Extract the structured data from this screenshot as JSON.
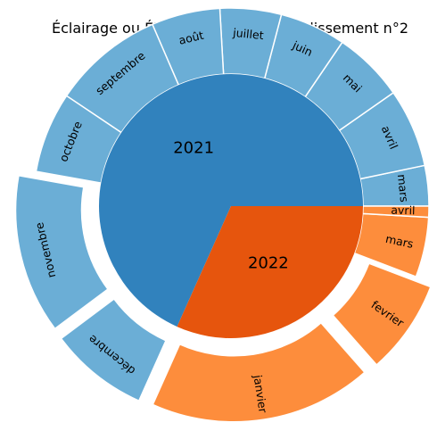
{
  "chart_data": {
    "type": "sunburst",
    "title": "Éclairage ou Électricité dans l'arrondissement n°2",
    "inner_ring": [
      {
        "name": "2021",
        "value": 68.3,
        "color": "#3182bd"
      },
      {
        "name": "2022",
        "value": 31.7,
        "color": "#e6550d"
      }
    ],
    "outer_ring": [
      {
        "parent": "2021",
        "label": "mars",
        "value": 3.3,
        "color": "#6baed6"
      },
      {
        "parent": "2021",
        "label": "avril",
        "value": 6.4,
        "color": "#6baed6"
      },
      {
        "parent": "2021",
        "label": "mai",
        "value": 5.8,
        "color": "#6baed6"
      },
      {
        "parent": "2021",
        "label": "juin",
        "value": 5.4,
        "color": "#6baed6"
      },
      {
        "parent": "2021",
        "label": "juillet",
        "value": 5.0,
        "color": "#6baed6"
      },
      {
        "parent": "2021",
        "label": "août",
        "value": 5.6,
        "color": "#6baed6"
      },
      {
        "parent": "2021",
        "label": "septembre",
        "value": 9.1,
        "color": "#6baed6"
      },
      {
        "parent": "2021",
        "label": "octobre",
        "value": 6.6,
        "color": "#6baed6"
      },
      {
        "parent": "2021",
        "label": "novembre",
        "value": 13.0,
        "color": "#6baed6",
        "exploded": true
      },
      {
        "parent": "2021",
        "label": "décembre",
        "value": 8.1,
        "color": "#6baed6",
        "exploded": true
      },
      {
        "parent": "2022",
        "label": "janvier",
        "value": 18.2,
        "color": "#fd8d3c",
        "exploded": true
      },
      {
        "parent": "2022",
        "label": "fevrier",
        "value": 7.7,
        "color": "#fd8d3c",
        "exploded": true
      },
      {
        "parent": "2022",
        "label": "mars",
        "value": 4.9,
        "color": "#fd8d3c"
      },
      {
        "parent": "2022",
        "label": "avril",
        "value": 0.9,
        "color": "#fd8d3c"
      }
    ]
  }
}
